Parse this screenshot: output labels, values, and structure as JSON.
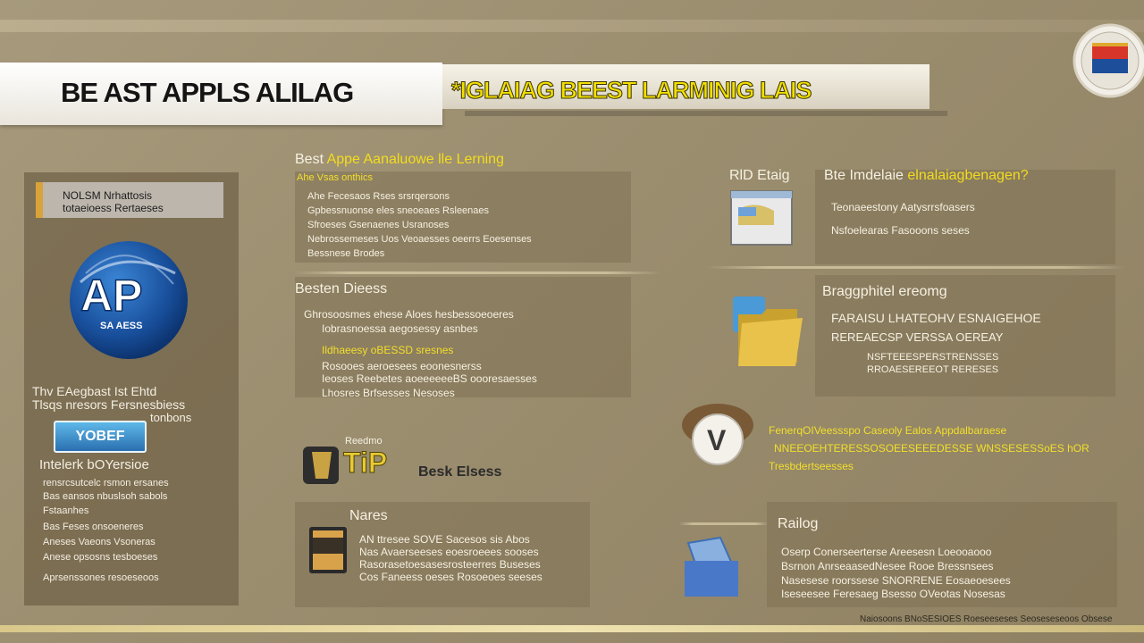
{
  "header": {
    "title": "BE AST APPLS ALILAG",
    "subtitle": "*IGLAIAG BEEST LARMINIG LAIS"
  },
  "left_panel": {
    "tag_line1": "NOLSM Nrhattosis",
    "tag_line2": "totaeioess Rertaeses",
    "logo_text": "AP",
    "logo_sub": "SA AESS",
    "text1": "Thv EAegbast Ist Ehtd",
    "text2": "Tlsqs nresors Fersnesbiess",
    "text3": "tonbons",
    "pill": "YOBEF",
    "section_title": "Intelerk bOYersioe",
    "items": [
      "rensrcsutcelc rsmon ersanes",
      "Bas eansos nbuslsoh sabols",
      "Fstaanhes",
      "Bas Feses onsoeneres",
      "Aneses Vaeons Vsoneras",
      "Anese opsosns tesboeses",
      "Aprsenssones resoeseoos"
    ]
  },
  "cards": {
    "c1": {
      "heading_pre": "Best",
      "heading_yel": "Appe Aanaluowe lle Lerning",
      "sub": "Ahe Vsas onthics",
      "lines": [
        "Ahe Fecesaos Rses srsrqersons",
        "Gpbessnuonse eles sneoeaes Rsleenaes",
        "Sfroeses Gsenaenes Usranoses",
        "Nebrossemeses Uos Veoaesses oeerrs Eoesenses",
        "Bessnese Brodes"
      ]
    },
    "c2": {
      "heading": "Besten Dieess",
      "lines": [
        "Ghrosoosmes ehese Aloes hesbessoeoeres",
        "Iobrasnoessa aegosessy asnbes",
        "Ildhaeesy oBESSD sresnes",
        "Rosooes aeroesees eoonesnerss",
        "Ieoses Reebetes aoeeeeeeBS oooresaesses",
        "Lhosres Brfsesses Nesoses"
      ]
    },
    "tip": {
      "label": "Reedmo",
      "big": "TiP",
      "after": "Besk Elsess"
    },
    "c3": {
      "heading": "Nares",
      "lines": [
        "AN ttresee SOVE Sacesos sis Abos",
        "Nas Avaerseeses eoesroeees sooses",
        "Rasorasetoesasesrosteerres Buseses",
        "Cos Faneess oeses Rosoeoes seeses"
      ]
    },
    "c4": {
      "side_label": "RlD Etaig",
      "heading_pre": "Bte Imdelaie",
      "heading_yel": "elnalaiagbenagen?",
      "lines": [
        "Teonaeestony Aatysrrsfoasers",
        "Nsfoelearas Fasooons seses"
      ]
    },
    "c5": {
      "heading": "Braggphitel ereomg",
      "lines": [
        "FARAISU LHATEOHV ESNAIGEHOE",
        "REREAECSP VERSSA OEREAY",
        "NSFTEEESPERSTRENSSES",
        "RROAESEREEOT RERESES"
      ]
    },
    "mid_right": {
      "lines": [
        "FenerqOIVeessspo Caseoly Ealos Appdalbaraese",
        "NNEEOEHTERESSOSOEESEEEDESSE WNSSESESSoES hOR",
        "Tresbdertseesses"
      ]
    },
    "c6": {
      "heading": "Railog",
      "lines": [
        "Oserp Conerseerterse Areesesn Loeooaooo",
        "Bsrnon AnrseaasedNesee Rooe Bressnsees",
        "Nasesese roorssese SNORRENE Eosaeoesees",
        "Iseseesee Feresaeg Bsesso OVeotas Nosesas"
      ]
    }
  },
  "footer": {
    "credit": "Naiosoons BNoSESIOES Roeseeseses Seoseseseoos Obsese"
  },
  "colors": {
    "background": "#9c8f70",
    "accent_yellow": "#f3dc1c",
    "panel": "#7a6b4c",
    "logo_blue": "#1c4e9a"
  }
}
